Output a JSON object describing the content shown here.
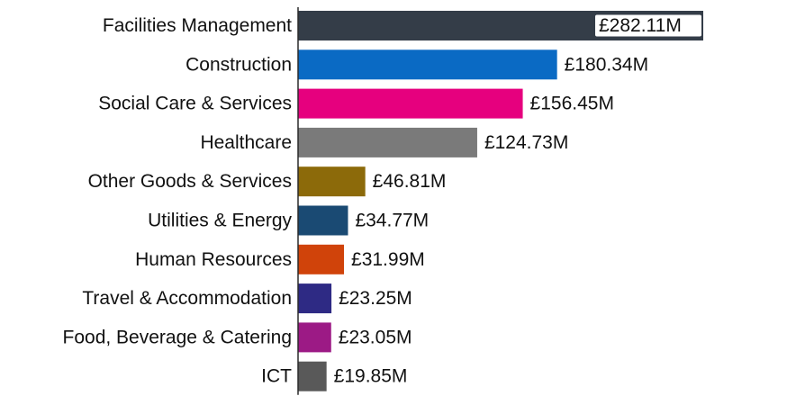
{
  "chart_data": {
    "type": "bar",
    "orientation": "horizontal",
    "title": "",
    "xlabel": "",
    "ylabel": "",
    "grid": false,
    "legend": "none",
    "value_prefix": "£",
    "value_suffix": "M",
    "categories": [
      "Facilities Management",
      "Construction",
      "Social Care & Services",
      "Healthcare",
      "Other Goods & Services",
      "Utilities & Energy",
      "Human Resources",
      "Travel & Accommodation",
      "Food, Beverage & Catering",
      "ICT"
    ],
    "values": [
      282.11,
      180.34,
      156.45,
      124.73,
      46.81,
      34.77,
      31.99,
      23.25,
      23.05,
      19.85
    ],
    "value_labels": [
      "£282.11M",
      "£180.34M",
      "£156.45M",
      "£124.73M",
      "£46.81M",
      "£34.77M",
      "£31.99M",
      "£23.25M",
      "£23.05M",
      "£19.85M"
    ],
    "colors": [
      "#343d48",
      "#0a6ac4",
      "#e6007e",
      "#7a7a7a",
      "#8c6a0a",
      "#1a4a73",
      "#d0430a",
      "#2e2a84",
      "#9c1a85",
      "#595959"
    ],
    "xlim": [
      0,
      282.11
    ]
  }
}
